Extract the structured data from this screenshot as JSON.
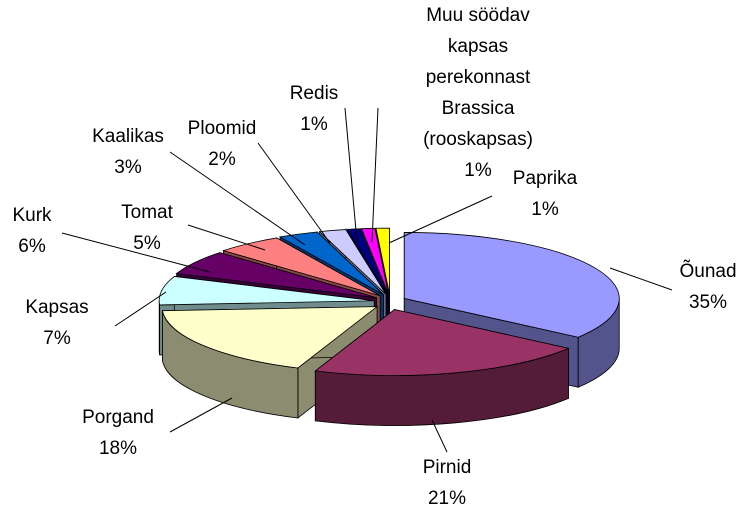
{
  "chart_data": {
    "type": "pie3d",
    "categories": [
      "Õunad",
      "Pirnid",
      "Porgand",
      "Kapsas",
      "Kurk",
      "Tomat",
      "Kaalikas",
      "Ploomid",
      "Redis",
      "Muu söödav kapsas perekonnast Brassica (rooskapsas)",
      "Paprika"
    ],
    "values": [
      35,
      21,
      18,
      7,
      6,
      5,
      3,
      2,
      1,
      1,
      1
    ],
    "value_labels": [
      "35%",
      "21%",
      "18%",
      "7%",
      "6%",
      "5%",
      "3%",
      "2%",
      "1%",
      "1%",
      "1%"
    ],
    "colors": [
      "#9999ff",
      "#993366",
      "#ffffcc",
      "#ccffff",
      "#660066",
      "#ff8080",
      "#0066cc",
      "#ccccff",
      "#000080",
      "#ff00ff",
      "#ffff00"
    ]
  }
}
